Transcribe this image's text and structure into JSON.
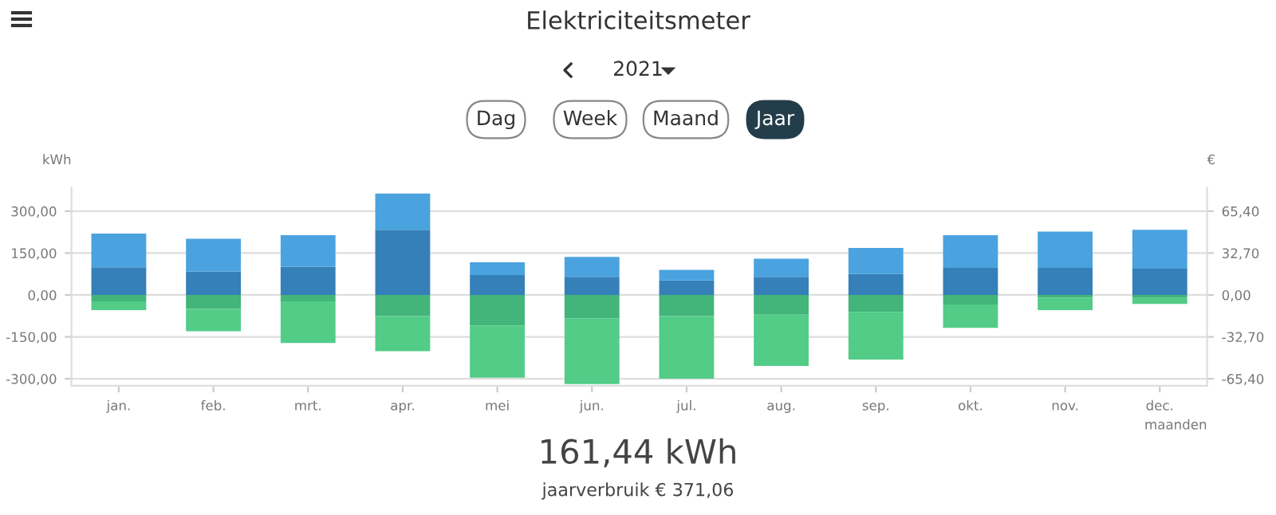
{
  "chart_data": {
    "type": "bar",
    "title": "Elektriciteitsmeter",
    "subtitle": "2021",
    "xlabel": "maanden",
    "ylabel": "kWh",
    "y2label": "€",
    "categories": [
      "jan.",
      "feb.",
      "mrt.",
      "apr.",
      "mei",
      "jun.",
      "jul.",
      "aug.",
      "sep.",
      "okt.",
      "nov.",
      "dec."
    ],
    "stacked": true,
    "series": [
      {
        "color": "#3580b8",
        "values": [
          99,
          84,
          101,
          233,
          71,
          65,
          52,
          65,
          75,
          97,
          97,
          94
        ]
      },
      {
        "color": "#4aa3df",
        "values": [
          121,
          117,
          113,
          130,
          46,
          71,
          38,
          65,
          93,
          117,
          130,
          139
        ]
      },
      {
        "color": "#43b47a",
        "values": [
          -23,
          -50,
          -23,
          -76,
          -109,
          -84,
          -76,
          -71,
          -61,
          -34,
          -10,
          -11
        ]
      },
      {
        "color": "#52cc87",
        "values": [
          -31,
          -80,
          -149,
          -125,
          -187,
          -235,
          -224,
          -183,
          -170,
          -84,
          -44,
          -21
        ]
      }
    ],
    "ylim": [
      -325,
      383
    ],
    "yticks": [
      {
        "value": -300,
        "label": "-300,00"
      },
      {
        "value": -150,
        "label": "-150,00"
      },
      {
        "value": 0,
        "label": "0,00"
      },
      {
        "value": 150,
        "label": "150,00"
      },
      {
        "value": 300,
        "label": "300,00"
      }
    ],
    "y2lim": [
      -70.85,
      83.49
    ],
    "y2ticks": [
      {
        "value": -65.4,
        "label": "-65,40"
      },
      {
        "value": -32.7,
        "label": "-32,70"
      },
      {
        "value": 0,
        "label": "0,00"
      },
      {
        "value": 32.7,
        "label": "32,70"
      },
      {
        "value": 65.4,
        "label": "65,40"
      }
    ],
    "grid": "y",
    "legend": false,
    "annotations": [
      "Dag",
      "Week",
      "Maand",
      "Jaar",
      "161,44 kWh",
      "jaarverbruik € 371,06"
    ]
  }
}
